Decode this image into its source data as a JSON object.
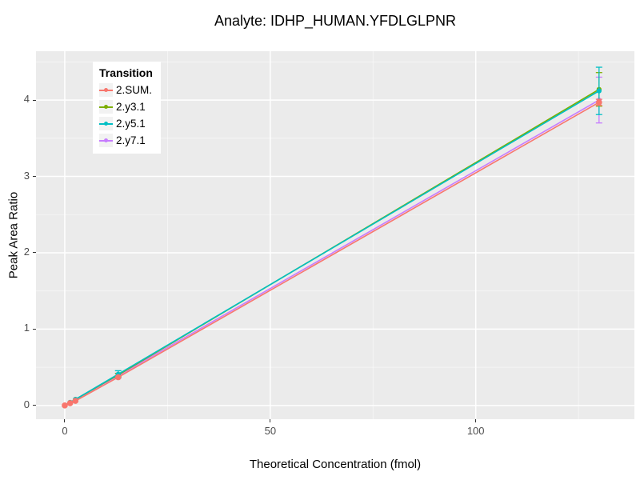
{
  "title": "Analyte: IDHP_HUMAN.YFDLGLPNR",
  "axes": {
    "xlabel": "Theoretical Concentration (fmol)",
    "ylabel": "Peak Area Ratio"
  },
  "legend": {
    "title": "Transition",
    "position": "top-left-inside"
  },
  "panel": {
    "background": "#EBEBEB",
    "grid_color": "#FFFFFF",
    "tick_label_color": "#4D4D4D",
    "tick_mark_color": "#333333"
  },
  "chart_data": {
    "type": "line",
    "title": "Analyte: IDHP_HUMAN.YFDLGLPNR",
    "xlabel": "Theoretical Concentration (fmol)",
    "ylabel": "Peak Area Ratio",
    "xlim": [
      -7,
      138.6
    ],
    "ylim": [
      -0.18,
      4.64
    ],
    "xticks": [
      0,
      50,
      100
    ],
    "xticks_minor": [
      25,
      75,
      125
    ],
    "yticks": [
      0,
      1,
      2,
      3,
      4
    ],
    "yticks_minor": [
      0.5,
      1.5,
      2.5,
      3.5,
      4.5
    ],
    "grid": "white-on-gray",
    "legend_position": "top-left-inside",
    "x": [
      0,
      1.3,
      2.6,
      13,
      130
    ],
    "series": [
      {
        "name": "2.SUM.",
        "color": "#F8766D",
        "values": [
          0.0,
          0.03,
          0.06,
          0.37,
          3.97
        ],
        "yerr": [
          0,
          0,
          0,
          0,
          0.04
        ]
      },
      {
        "name": "2.y3.1",
        "color": "#7CAE00",
        "values": [
          0.0,
          0.04,
          0.08,
          0.4,
          4.14
        ],
        "yerr": [
          0,
          0,
          0,
          0.02,
          0.22
        ]
      },
      {
        "name": "2.y5.1",
        "color": "#00BFC4",
        "values": [
          0.0,
          0.04,
          0.08,
          0.41,
          4.12
        ],
        "yerr": [
          0,
          0,
          0,
          0.045,
          0.31
        ]
      },
      {
        "name": "2.y7.1",
        "color": "#C77CFF",
        "values": [
          0.0,
          0.04,
          0.08,
          0.39,
          4.0
        ],
        "yerr": [
          0,
          0,
          0,
          0.03,
          0.3
        ]
      }
    ]
  }
}
